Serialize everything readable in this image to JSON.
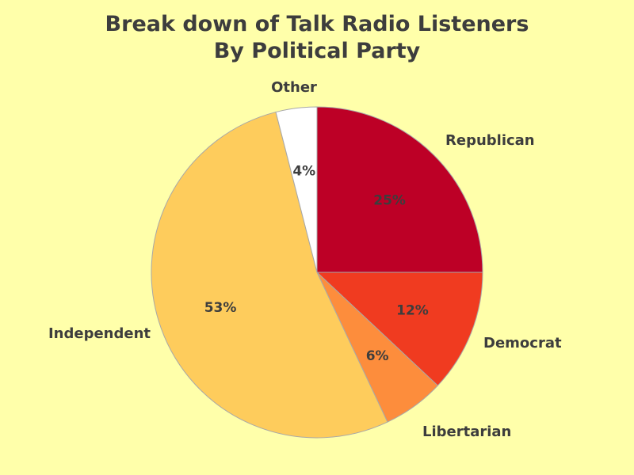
{
  "chart_data": {
    "type": "pie",
    "title": [
      "Break down of Talk Radio Listeners",
      "By Political Party"
    ],
    "categories": [
      "Republican",
      "Democrat",
      "Libertarian",
      "Independent",
      "Other"
    ],
    "values": [
      25,
      12,
      6,
      53,
      4
    ],
    "value_labels": [
      "25%",
      "12%",
      "6%",
      "53%",
      "4%"
    ],
    "colors": [
      "#BD0026",
      "#F03B20",
      "#FD8D3C",
      "#FECC5C",
      "#FFFFFF"
    ],
    "start": "12 o'clock",
    "direction": "clockwise",
    "legend": "none"
  }
}
